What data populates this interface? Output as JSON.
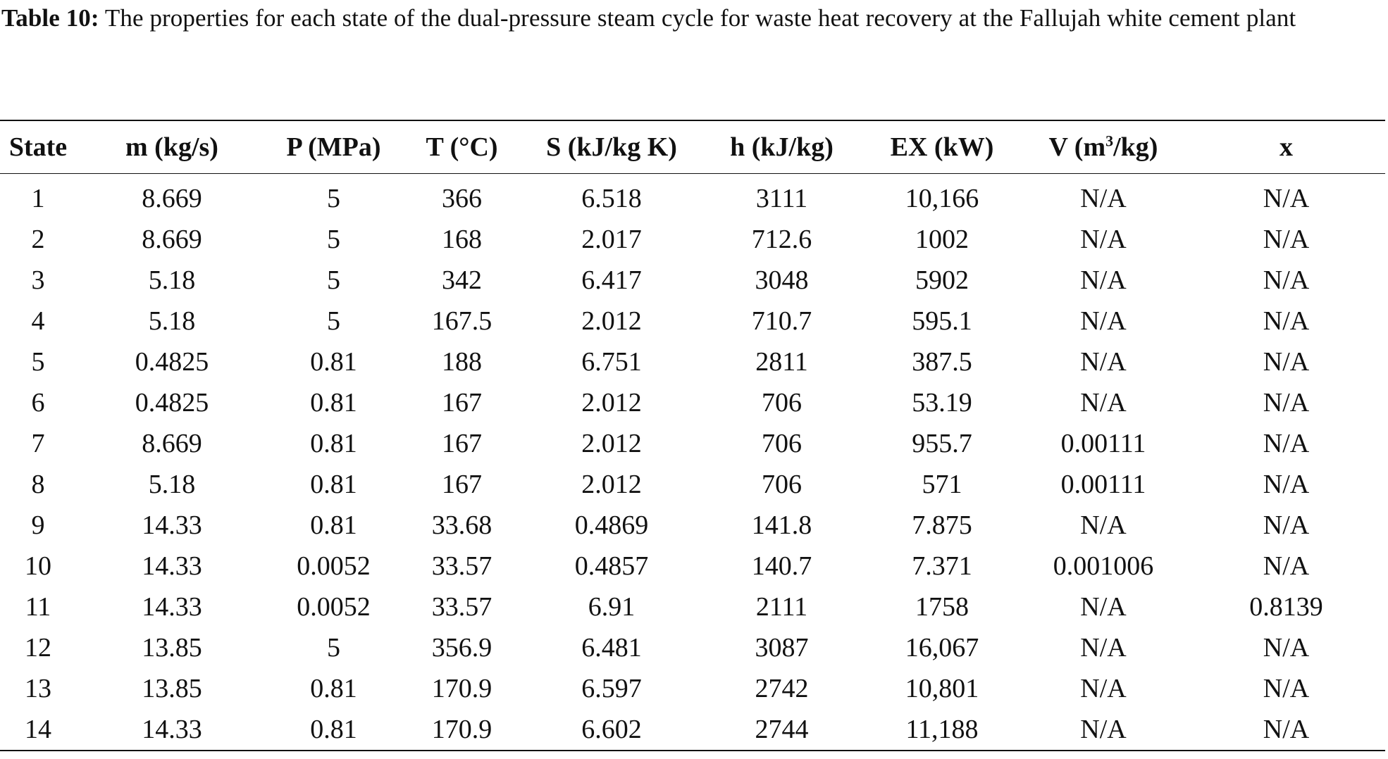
{
  "caption": {
    "label": "Table 10:",
    "text": "The properties for each state of the dual-pressure steam cycle for waste heat recovery at the Fallujah white cement plant"
  },
  "table": {
    "headers": [
      {
        "text": "State"
      },
      {
        "text": "m (kg/s)"
      },
      {
        "text": "P (MPa)"
      },
      {
        "text": "T (°C)"
      },
      {
        "text": "S (kJ/kg K)"
      },
      {
        "text": "h (kJ/kg)"
      },
      {
        "text": "EX (kW)"
      },
      {
        "pre": "V (m",
        "sup": "3",
        "post": "/kg)"
      },
      {
        "text": "x"
      }
    ],
    "rows": [
      [
        "1",
        "8.669",
        "5",
        "366",
        "6.518",
        "3111",
        "10,166",
        "N/A",
        "N/A"
      ],
      [
        "2",
        "8.669",
        "5",
        "168",
        "2.017",
        "712.6",
        "1002",
        "N/A",
        "N/A"
      ],
      [
        "3",
        "5.18",
        "5",
        "342",
        "6.417",
        "3048",
        "5902",
        "N/A",
        "N/A"
      ],
      [
        "4",
        "5.18",
        "5",
        "167.5",
        "2.012",
        "710.7",
        "595.1",
        "N/A",
        "N/A"
      ],
      [
        "5",
        "0.4825",
        "0.81",
        "188",
        "6.751",
        "2811",
        "387.5",
        "N/A",
        "N/A"
      ],
      [
        "6",
        "0.4825",
        "0.81",
        "167",
        "2.012",
        "706",
        "53.19",
        "N/A",
        "N/A"
      ],
      [
        "7",
        "8.669",
        "0.81",
        "167",
        "2.012",
        "706",
        "955.7",
        "0.00111",
        "N/A"
      ],
      [
        "8",
        "5.18",
        "0.81",
        "167",
        "2.012",
        "706",
        "571",
        "0.00111",
        "N/A"
      ],
      [
        "9",
        "14.33",
        "0.81",
        "33.68",
        "0.4869",
        "141.8",
        "7.875",
        "N/A",
        "N/A"
      ],
      [
        "10",
        "14.33",
        "0.0052",
        "33.57",
        "0.4857",
        "140.7",
        "7.371",
        "0.001006",
        "N/A"
      ],
      [
        "11",
        "14.33",
        "0.0052",
        "33.57",
        "6.91",
        "2111",
        "1758",
        "N/A",
        "0.8139"
      ],
      [
        "12",
        "13.85",
        "5",
        "356.9",
        "6.481",
        "3087",
        "16,067",
        "N/A",
        "N/A"
      ],
      [
        "13",
        "13.85",
        "0.81",
        "170.9",
        "6.597",
        "2742",
        "10,801",
        "N/A",
        "N/A"
      ],
      [
        "14",
        "14.33",
        "0.81",
        "170.9",
        "6.602",
        "2744",
        "11,188",
        "N/A",
        "N/A"
      ]
    ]
  }
}
